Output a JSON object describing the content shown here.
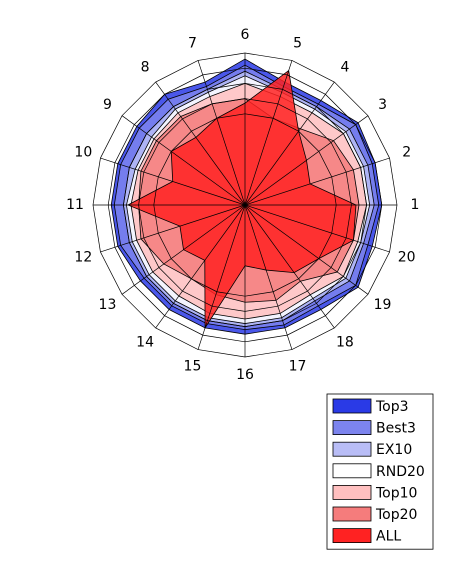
{
  "chart_data": {
    "type": "radar",
    "categories": [
      "1",
      "2",
      "3",
      "4",
      "5",
      "6",
      "7",
      "8",
      "9",
      "10",
      "11",
      "12",
      "13",
      "14",
      "15",
      "16",
      "17",
      "18",
      "19",
      "20"
    ],
    "rlim": [
      0,
      1
    ],
    "rticks": [
      0.6,
      0.7,
      0.8,
      0.9,
      1.0
    ],
    "grid": true,
    "legend": "lower right",
    "series": [
      {
        "name": "Top3",
        "color": "#2a3ae6",
        "values": [
          0.9,
          0.9,
          0.92,
          0.85,
          0.85,
          0.96,
          0.85,
          0.9,
          0.88,
          0.88,
          0.88,
          0.88,
          0.85,
          0.85,
          0.85,
          0.85,
          0.85,
          0.85,
          0.92,
          0.88
        ]
      },
      {
        "name": "Best3",
        "color": "#7c84ee",
        "values": [
          0.88,
          0.88,
          0.9,
          0.82,
          0.82,
          0.92,
          0.82,
          0.86,
          0.86,
          0.86,
          0.86,
          0.86,
          0.82,
          0.82,
          0.82,
          0.82,
          0.83,
          0.82,
          0.9,
          0.85
        ]
      },
      {
        "name": "EX10",
        "color": "#b9bdf6",
        "values": [
          0.85,
          0.85,
          0.85,
          0.8,
          0.8,
          0.88,
          0.8,
          0.8,
          0.8,
          0.8,
          0.8,
          0.8,
          0.8,
          0.8,
          0.8,
          0.8,
          0.8,
          0.78,
          0.85,
          0.82
        ]
      },
      {
        "name": "RND20",
        "color": "#ffffff",
        "values": [
          0.82,
          0.82,
          0.82,
          0.78,
          0.78,
          0.85,
          0.78,
          0.78,
          0.76,
          0.76,
          0.78,
          0.78,
          0.78,
          0.78,
          0.78,
          0.78,
          0.78,
          0.76,
          0.82,
          0.8
        ]
      },
      {
        "name": "Top10",
        "color": "#ffc0c0",
        "values": [
          0.8,
          0.8,
          0.8,
          0.75,
          0.75,
          0.8,
          0.75,
          0.75,
          0.74,
          0.74,
          0.75,
          0.75,
          0.75,
          0.74,
          0.75,
          0.75,
          0.75,
          0.73,
          0.8,
          0.78
        ]
      },
      {
        "name": "Top20",
        "color": "#f57c7c",
        "values": [
          0.75,
          0.75,
          0.72,
          0.62,
          0.6,
          0.7,
          0.7,
          0.72,
          0.72,
          0.72,
          0.7,
          0.72,
          0.66,
          0.6,
          0.62,
          0.64,
          0.66,
          0.62,
          0.75,
          0.75
        ]
      },
      {
        "name": "ALL",
        "color": "#ff2222",
        "values": [
          0.73,
          0.45,
          0.5,
          0.6,
          0.93,
          0.67,
          0.6,
          0.55,
          0.6,
          0.5,
          0.77,
          0.45,
          0.5,
          0.45,
          0.85,
          0.4,
          0.45,
          0.55,
          0.6,
          0.75
        ]
      }
    ]
  }
}
